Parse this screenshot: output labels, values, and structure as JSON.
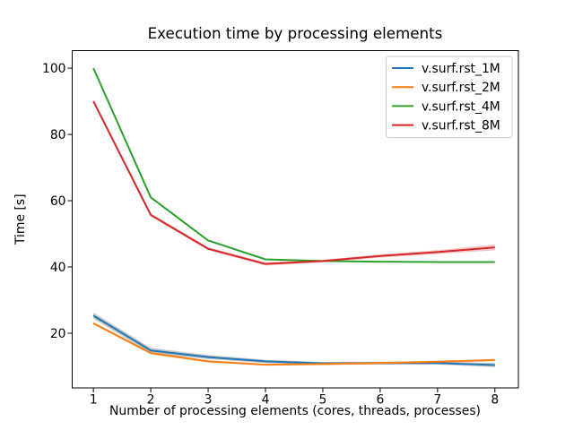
{
  "chart_data": {
    "type": "line",
    "title": "Execution time by processing elements",
    "xlabel": "Number of processing elements (cores, threads, processes)",
    "ylabel": "Time [s]",
    "x": [
      1,
      2,
      3,
      4,
      5,
      6,
      7,
      8
    ],
    "xticks": [
      1,
      2,
      3,
      4,
      5,
      6,
      7,
      8
    ],
    "yticks": [
      20,
      40,
      60,
      80,
      100
    ],
    "xlim": [
      0.63,
      8.41
    ],
    "ylim": [
      3.5,
      105.3
    ],
    "grid": false,
    "legend_position": "upper right",
    "background_color": "#ffffff",
    "spine_color": "#000000",
    "legend_border_color": "#cccccc",
    "series": [
      {
        "name": "v.surf.rst_1M",
        "color": "#1f77b4",
        "values": [
          25.3,
          14.8,
          12.8,
          11.5,
          10.9,
          11.0,
          11.0,
          10.4
        ],
        "band": {
          "color": "rgba(128,128,128,0.45)",
          "delta": [
            0.9,
            0.8,
            0.6,
            0.5,
            0.45,
            0.45,
            0.45,
            0.6
          ]
        }
      },
      {
        "name": "v.surf.rst_2M",
        "color": "#ff7f0e",
        "values": [
          23.0,
          14.0,
          11.5,
          10.5,
          10.7,
          11.0,
          11.4,
          11.9
        ],
        "band": {
          "color": "rgba(150,150,150,0.30)",
          "delta": [
            0.4,
            0.4,
            0.35,
            0.3,
            0.3,
            0.3,
            0.3,
            0.4
          ]
        }
      },
      {
        "name": "v.surf.rst_4M",
        "color": "#2ca02c",
        "values": [
          100.0,
          61.0,
          48.0,
          42.3,
          41.8,
          41.6,
          41.5,
          41.5
        ],
        "band": null
      },
      {
        "name": "v.surf.rst_8M",
        "color": "#d62728",
        "values": [
          90.0,
          55.7,
          45.5,
          40.9,
          41.8,
          43.3,
          44.5,
          45.9
        ],
        "band": {
          "color": "rgba(214,39,40,0.25)",
          "delta": [
            0.5,
            0.5,
            0.45,
            0.5,
            0.4,
            0.5,
            0.6,
            0.9
          ]
        }
      }
    ]
  }
}
